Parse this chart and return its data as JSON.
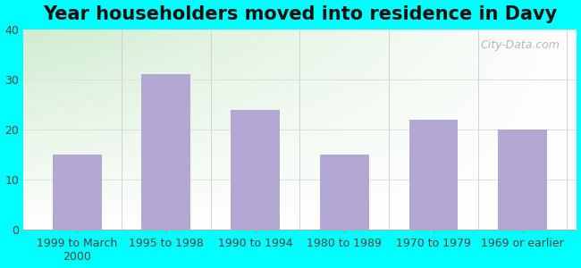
{
  "title": "Year householders moved into residence in Davy",
  "categories": [
    "1999 to March\n2000",
    "1995 to 1998",
    "1990 to 1994",
    "1980 to 1989",
    "1970 to 1979",
    "1969 or earlier"
  ],
  "values": [
    15,
    31,
    24,
    15,
    22,
    20
  ],
  "bar_color": "#b3a8d4",
  "ylim": [
    0,
    40
  ],
  "yticks": [
    0,
    10,
    20,
    30,
    40
  ],
  "bg_outer": "#00ffff",
  "bg_green": "#d0ecd0",
  "bg_white": "#ffffff",
  "grid_color": "#dddddd",
  "watermark": "City-Data.com",
  "title_fontsize": 15,
  "tick_fontsize": 9,
  "bar_width": 0.55
}
